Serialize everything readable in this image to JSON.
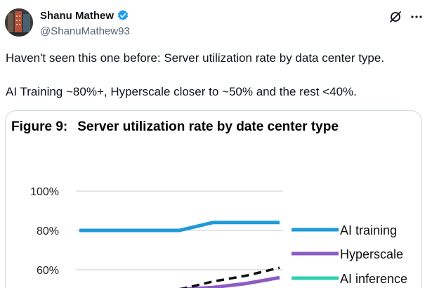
{
  "author": {
    "display_name": "Shanu Mathew",
    "handle": "@ShanuMathew93",
    "verified_icon": "verified-badge-icon",
    "verified_color": "#1d9bf0"
  },
  "tweet": {
    "line1": "Haven't seen this one before: Server utilization rate by data center type.",
    "line2": "AI Training ~80%+, Hyperscale closer to ~50% and the rest <40%."
  },
  "actions": {
    "grok_icon": "grok-icon",
    "more_icon": "more-options-icon"
  },
  "figure": {
    "number": "Figure 9:",
    "title": "Server utilization rate by date center type"
  },
  "chart_data": {
    "type": "line",
    "title": "Server utilization rate by date center type",
    "y_ticks": [
      "100%",
      "80%",
      "60%"
    ],
    "ylim_visible": [
      55,
      100
    ],
    "grid": true,
    "legend_placement": "right",
    "x_points": 7,
    "series": [
      {
        "name": "AI training",
        "color": "#1e9ad6",
        "style": "solid",
        "values": [
          80,
          80,
          80,
          80,
          84,
          84,
          84
        ]
      },
      {
        "name": "Hyperscale",
        "color": "#8c5cc4",
        "style": "solid",
        "values": [
          null,
          null,
          null,
          50,
          51,
          53,
          56
        ]
      },
      {
        "name": "AI inference",
        "color": "#2dcfb3",
        "style": "solid",
        "values": []
      },
      {
        "name": "",
        "color": "#111111",
        "style": "dashed",
        "values": [
          null,
          null,
          null,
          50,
          54,
          57,
          61
        ]
      }
    ]
  }
}
